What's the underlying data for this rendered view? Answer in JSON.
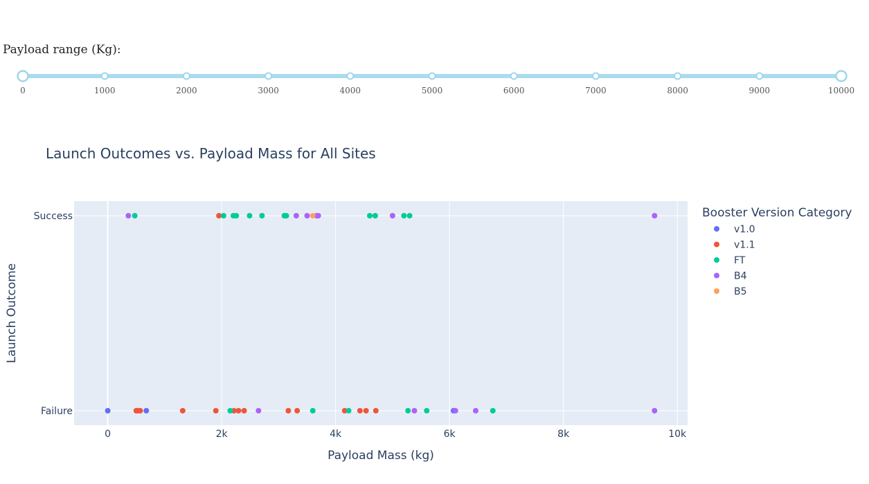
{
  "slider": {
    "label": "Payload range (Kg):",
    "min": 0,
    "max": 10000,
    "marks": [
      "0",
      "1000",
      "2000",
      "3000",
      "4000",
      "5000",
      "6000",
      "7000",
      "8000",
      "9000",
      "10000"
    ],
    "selected_range": [
      0,
      10000
    ],
    "track_color": "#a8dcf0",
    "handle_color": "#9fd6ea"
  },
  "chart_data": {
    "type": "scatter",
    "title": "Launch Outcomes vs. Payload Mass for All Sites",
    "xlabel": "Payload Mass (kg)",
    "ylabel": "Launch Outcome",
    "xlim": [
      -600,
      10200
    ],
    "x_ticks": [
      0,
      2000,
      4000,
      6000,
      8000,
      10000
    ],
    "x_tick_labels": [
      "0",
      "2k",
      "4k",
      "6k",
      "8k",
      "10k"
    ],
    "categories": [
      "Failure",
      "Success"
    ],
    "grid": true,
    "legend_title": "Booster Version Category",
    "legend_position": "right",
    "series": [
      {
        "name": "v1.0",
        "color": "#636efa",
        "points": [
          {
            "x": 0,
            "y": "Failure"
          },
          {
            "x": 677,
            "y": "Failure"
          },
          {
            "x": 6070,
            "y": "Failure"
          }
        ]
      },
      {
        "name": "v1.1",
        "color": "#ef553b",
        "points": [
          {
            "x": 1952,
            "y": "Success"
          },
          {
            "x": 500,
            "y": "Failure"
          },
          {
            "x": 525,
            "y": "Failure"
          },
          {
            "x": 570,
            "y": "Failure"
          },
          {
            "x": 1316,
            "y": "Failure"
          },
          {
            "x": 1898,
            "y": "Failure"
          },
          {
            "x": 2216,
            "y": "Failure"
          },
          {
            "x": 2296,
            "y": "Failure"
          },
          {
            "x": 2395,
            "y": "Failure"
          },
          {
            "x": 3170,
            "y": "Failure"
          },
          {
            "x": 3325,
            "y": "Failure"
          },
          {
            "x": 4159,
            "y": "Failure"
          },
          {
            "x": 4428,
            "y": "Failure"
          },
          {
            "x": 4535,
            "y": "Failure"
          },
          {
            "x": 4707,
            "y": "Failure"
          }
        ]
      },
      {
        "name": "FT",
        "color": "#00cc96",
        "points": [
          {
            "x": 475,
            "y": "Success"
          },
          {
            "x": 2034,
            "y": "Success"
          },
          {
            "x": 2205,
            "y": "Success"
          },
          {
            "x": 2257,
            "y": "Success"
          },
          {
            "x": 2490,
            "y": "Success"
          },
          {
            "x": 2708,
            "y": "Success"
          },
          {
            "x": 3100,
            "y": "Success"
          },
          {
            "x": 3136,
            "y": "Success"
          },
          {
            "x": 4600,
            "y": "Success"
          },
          {
            "x": 4696,
            "y": "Success"
          },
          {
            "x": 5200,
            "y": "Success"
          },
          {
            "x": 5300,
            "y": "Success"
          },
          {
            "x": 2150,
            "y": "Failure"
          },
          {
            "x": 3600,
            "y": "Failure"
          },
          {
            "x": 4230,
            "y": "Failure"
          },
          {
            "x": 5271,
            "y": "Failure"
          },
          {
            "x": 5600,
            "y": "Failure"
          },
          {
            "x": 6761,
            "y": "Failure"
          }
        ]
      },
      {
        "name": "B4",
        "color": "#ab63fa",
        "points": [
          {
            "x": 362,
            "y": "Success"
          },
          {
            "x": 3310,
            "y": "Success"
          },
          {
            "x": 3500,
            "y": "Success"
          },
          {
            "x": 3669,
            "y": "Success"
          },
          {
            "x": 3696,
            "y": "Success"
          },
          {
            "x": 5000,
            "y": "Success"
          },
          {
            "x": 9600,
            "y": "Success"
          },
          {
            "x": 2647,
            "y": "Failure"
          },
          {
            "x": 5384,
            "y": "Failure"
          },
          {
            "x": 6104,
            "y": "Failure"
          },
          {
            "x": 6460,
            "y": "Failure"
          },
          {
            "x": 9600,
            "y": "Failure"
          }
        ]
      },
      {
        "name": "B5",
        "color": "#ffa15a",
        "points": [
          {
            "x": 3600,
            "y": "Success"
          }
        ]
      }
    ]
  }
}
